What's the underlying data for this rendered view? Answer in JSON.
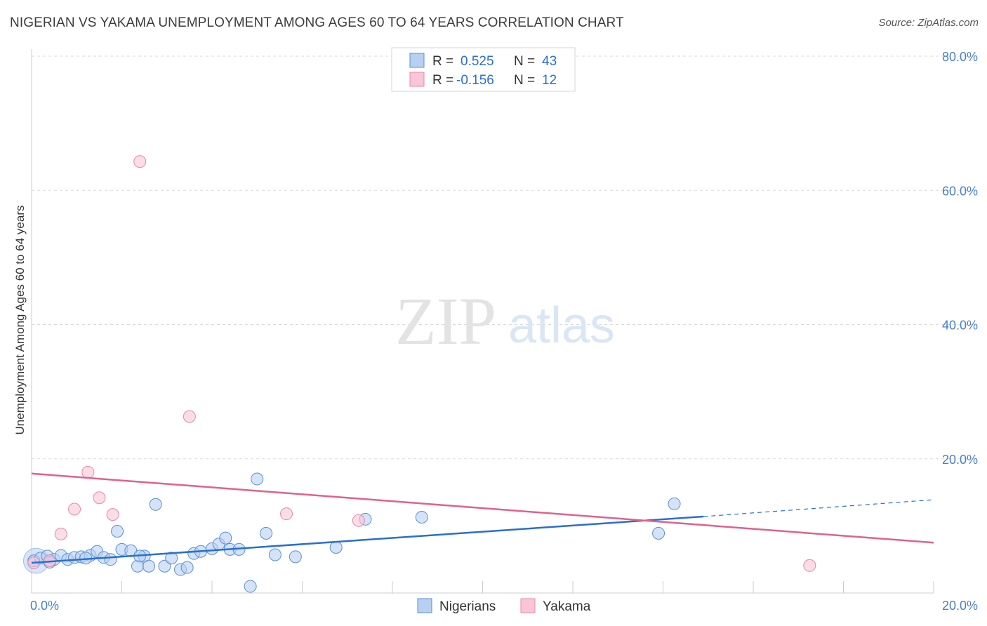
{
  "title": "NIGERIAN VS YAKAMA UNEMPLOYMENT AMONG AGES 60 TO 64 YEARS CORRELATION CHART",
  "source": "Source: ZipAtlas.com",
  "watermark": {
    "zip": "ZIP",
    "atlas": "atlas"
  },
  "colors": {
    "blue": "#5b8fd8",
    "blue_fill": "#b7d0f1",
    "blue_line": "#2a6fcf",
    "pink": "#e889a8",
    "pink_fill": "#f8c6d6",
    "pink_line": "#e0628c",
    "axis_text": "#4a7fcf",
    "grid": "#d9d9d9"
  },
  "legend": {
    "r_label": "R =",
    "n_label": "N =",
    "rows": [
      {
        "r": "0.525",
        "n": "43"
      },
      {
        "r": "-0.156",
        "n": "12"
      }
    ]
  },
  "chart_data": {
    "type": "scatter",
    "title": "NIGERIAN VS YAKAMA UNEMPLOYMENT AMONG AGES 60 TO 64 YEARS CORRELATION CHART",
    "xlabel": "",
    "ylabel": "Unemployment Among Ages 60 to 64 years",
    "xlim": [
      0,
      20
    ],
    "ylim": [
      0,
      82
    ],
    "x_tick_labels": [
      "0.0%",
      "20.0%"
    ],
    "y_ticks": [
      20,
      40,
      60,
      80
    ],
    "y_tick_labels": [
      "20.0%",
      "40.0%",
      "60.0%",
      "80.0%"
    ],
    "grid": true,
    "legend_position": "bottom-center",
    "series": [
      {
        "name": "Nigerians",
        "points": [
          [
            0.05,
            4.8
          ],
          [
            0.2,
            5.2
          ],
          [
            0.35,
            5.5
          ],
          [
            0.5,
            5.0
          ],
          [
            0.65,
            5.6
          ],
          [
            0.8,
            5.0
          ],
          [
            0.95,
            5.3
          ],
          [
            1.1,
            5.4
          ],
          [
            1.3,
            5.6
          ],
          [
            1.45,
            6.2
          ],
          [
            1.6,
            5.3
          ],
          [
            1.75,
            5.0
          ],
          [
            1.9,
            9.2
          ],
          [
            2.0,
            6.5
          ],
          [
            2.2,
            6.3
          ],
          [
            2.35,
            4.0
          ],
          [
            2.5,
            5.5
          ],
          [
            2.6,
            4.0
          ],
          [
            2.75,
            13.2
          ],
          [
            2.95,
            4.0
          ],
          [
            3.1,
            5.2
          ],
          [
            3.3,
            3.5
          ],
          [
            3.45,
            3.8
          ],
          [
            3.6,
            5.9
          ],
          [
            3.75,
            6.2
          ],
          [
            4.0,
            6.6
          ],
          [
            4.15,
            7.3
          ],
          [
            4.3,
            8.2
          ],
          [
            4.4,
            6.5
          ],
          [
            4.6,
            6.5
          ],
          [
            4.85,
            1.0
          ],
          [
            5.0,
            17.0
          ],
          [
            5.2,
            8.9
          ],
          [
            5.4,
            5.7
          ],
          [
            5.85,
            5.4
          ],
          [
            6.75,
            6.8
          ],
          [
            7.4,
            11.0
          ],
          [
            8.65,
            11.3
          ],
          [
            13.9,
            8.9
          ],
          [
            14.25,
            13.3
          ],
          [
            0.4,
            4.6
          ],
          [
            1.2,
            5.2
          ],
          [
            2.4,
            5.5
          ]
        ],
        "trend": {
          "x": [
            0,
            14.9
          ],
          "y": [
            4.5,
            11.4
          ],
          "dashed_x": [
            14.9,
            20
          ],
          "dashed_y": [
            11.4,
            13.9
          ]
        }
      },
      {
        "name": "Yakama",
        "points": [
          [
            0.05,
            4.5
          ],
          [
            0.4,
            4.8
          ],
          [
            0.65,
            8.8
          ],
          [
            0.95,
            12.5
          ],
          [
            1.25,
            18.0
          ],
          [
            1.5,
            14.2
          ],
          [
            1.8,
            11.7
          ],
          [
            2.4,
            64.3
          ],
          [
            3.5,
            26.3
          ],
          [
            5.65,
            11.8
          ],
          [
            7.25,
            10.8
          ],
          [
            17.25,
            4.1
          ]
        ],
        "trend": {
          "x": [
            0,
            20
          ],
          "y": [
            17.8,
            7.5
          ]
        }
      }
    ]
  }
}
